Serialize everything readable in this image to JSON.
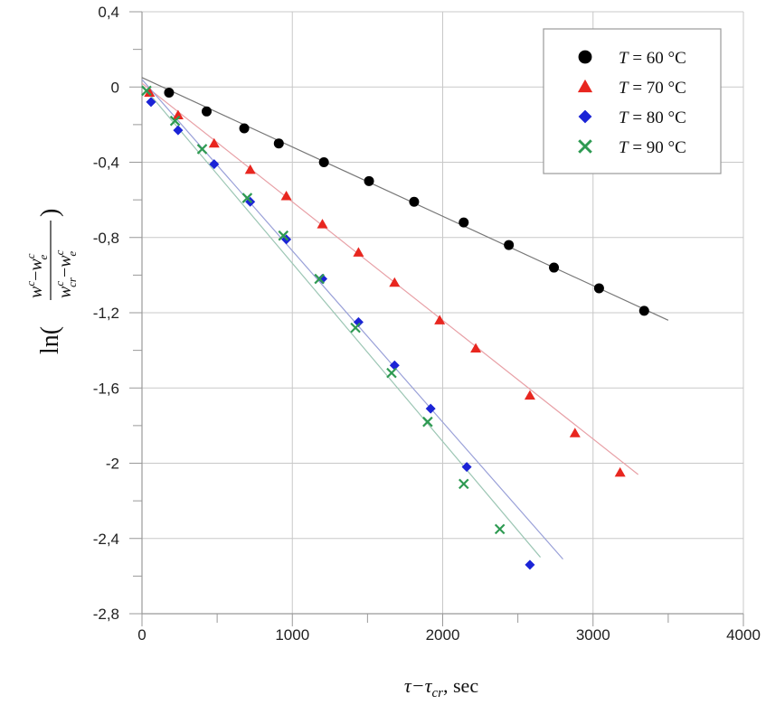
{
  "chart_data": {
    "type": "scatter",
    "title": "",
    "xlabel": "τ−τ",
    "xlabel_sub": "cr",
    "xlabel_unit": ", sec",
    "ylabel": {
      "prefix": "ln(",
      "num_a": "w",
      "num_a_sup": "c",
      "num_minus": "−",
      "num_b": "w",
      "num_b_sup": "c",
      "num_b_sub": "e",
      "den_a": "w",
      "den_a_sup": "c",
      "den_a_sub": "cr",
      "den_minus": "−",
      "den_b": "w",
      "den_b_sup": "c",
      "den_b_sub": "e",
      "suffix": ")"
    },
    "xlim": [
      0,
      4000
    ],
    "ylim": [
      -2.8,
      0.4
    ],
    "x_ticks": [
      0,
      1000,
      2000,
      3000,
      4000
    ],
    "x_tick_labels": [
      "0",
      "1000",
      "2000",
      "3000",
      "4000"
    ],
    "y_ticks": [
      0.4,
      0,
      -0.4,
      -0.8,
      -1.2,
      -1.6,
      -2,
      -2.4,
      -2.8
    ],
    "y_tick_labels": [
      "0,4",
      "0",
      "-0,4",
      "-0,8",
      "-1,2",
      "-1,6",
      "-2",
      "-2,4",
      "-2,8"
    ],
    "grid": true,
    "legend_position": "top-right",
    "series": [
      {
        "name_var": "T",
        "name_rest": " = 60 °C",
        "marker": "circle",
        "color": "#000000",
        "line_color": "#777777",
        "x": [
          180,
          430,
          680,
          910,
          1210,
          1510,
          1810,
          2140,
          2440,
          2740,
          3040,
          3340
        ],
        "y": [
          -0.03,
          -0.13,
          -0.22,
          -0.3,
          -0.4,
          -0.5,
          -0.61,
          -0.72,
          -0.84,
          -0.96,
          -1.07,
          -1.19
        ],
        "fit": {
          "x": [
            0,
            3500
          ],
          "y": [
            0.05,
            -1.24
          ]
        }
      },
      {
        "name_var": "T",
        "name_rest": " = 70 °C",
        "marker": "triangle",
        "color": "#e8261f",
        "line_color": "#e8a0a6",
        "x": [
          50,
          240,
          480,
          720,
          960,
          1200,
          1440,
          1680,
          1980,
          2220,
          2580,
          2880,
          3180
        ],
        "y": [
          -0.03,
          -0.15,
          -0.3,
          -0.44,
          -0.58,
          -0.73,
          -0.88,
          -1.04,
          -1.24,
          -1.39,
          -1.64,
          -1.84,
          -2.05
        ],
        "fit": {
          "x": [
            0,
            3300
          ],
          "y": [
            0.02,
            -2.06
          ]
        }
      },
      {
        "name_var": "T",
        "name_rest": " = 80 °C",
        "marker": "diamond",
        "color": "#1b24d6",
        "line_color": "#99a0d8",
        "x": [
          60,
          240,
          480,
          720,
          960,
          1200,
          1440,
          1680,
          1920,
          2160,
          2580
        ],
        "y": [
          -0.08,
          -0.23,
          -0.41,
          -0.61,
          -0.81,
          -1.02,
          -1.25,
          -1.48,
          -1.71,
          -2.02,
          -2.54
        ],
        "fit": {
          "x": [
            0,
            2800
          ],
          "y": [
            0.04,
            -2.51
          ]
        }
      },
      {
        "name_var": "T",
        "name_rest": " = 90 °C",
        "marker": "x",
        "color": "#2e9a52",
        "line_color": "#9cc6b4",
        "x": [
          30,
          220,
          400,
          700,
          940,
          1180,
          1420,
          1660,
          1900,
          2140,
          2380
        ],
        "y": [
          -0.02,
          -0.18,
          -0.33,
          -0.59,
          -0.79,
          -1.02,
          -1.28,
          -1.52,
          -1.78,
          -2.11,
          -2.35
        ],
        "fit": {
          "x": [
            0,
            2650
          ],
          "y": [
            0.01,
            -2.5
          ]
        }
      }
    ]
  }
}
